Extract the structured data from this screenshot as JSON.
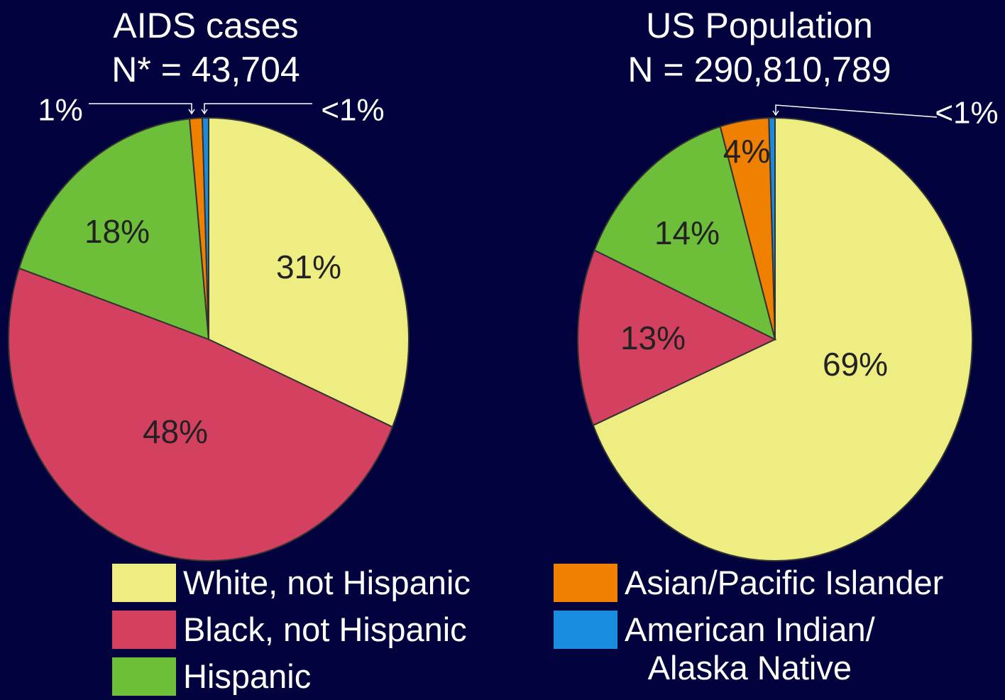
{
  "chart_data": [
    {
      "type": "pie",
      "title": "AIDS cases",
      "subtitle": "N* = 43,704",
      "values": [
        31,
        48,
        18,
        1,
        0.5
      ],
      "value_labels": [
        "31%",
        "48%",
        "18%",
        "1%",
        "<1%"
      ]
    },
    {
      "type": "pie",
      "title": "US Population",
      "subtitle": "N = 290,810,789",
      "values": [
        69,
        13,
        14,
        4,
        0.5
      ],
      "value_labels": [
        "69%",
        "13%",
        "14%",
        "4%",
        "<1%"
      ]
    }
  ],
  "legend": {
    "categories": [
      "White, not Hispanic",
      "Black, not Hispanic",
      "Hispanic",
      "Asian/Pacific Islander",
      "American Indian/\nAlaska Native"
    ],
    "colors": [
      "#eeed82",
      "#d4405f",
      "#6dbf3a",
      "#f08000",
      "#1a8ce0"
    ]
  }
}
